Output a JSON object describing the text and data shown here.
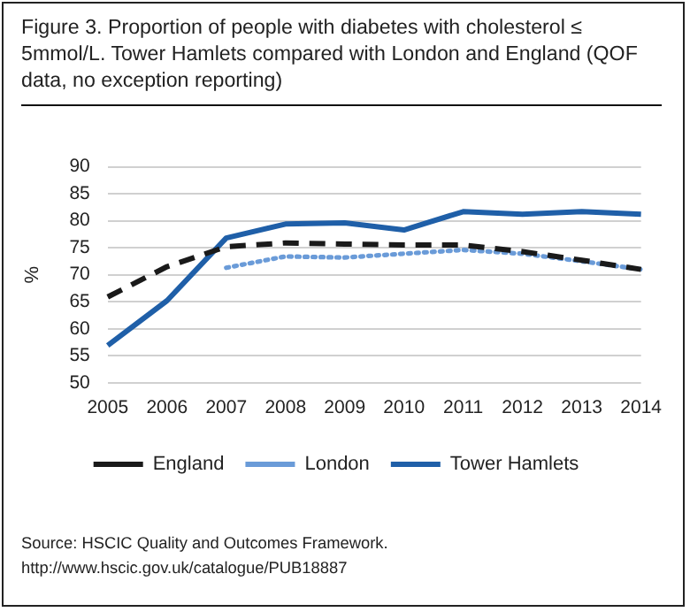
{
  "chart_data": {
    "type": "line",
    "title": "Figure 3. Proportion of people with diabetes with cholesterol ≤ 5mmol/L. Tower Hamlets compared with London and England (QOF data, no exception reporting)",
    "ylabel": "%",
    "categories": [
      "2005",
      "2006",
      "2007",
      "2008",
      "2009",
      "2010",
      "2011",
      "2012",
      "2013",
      "2014"
    ],
    "series": [
      {
        "name": "England",
        "color": "#1a1a1a",
        "line_style": "dashed",
        "values": [
          65.9,
          71.5,
          75.2,
          75.9,
          75.7,
          75.5,
          75.5,
          74.3,
          72.7,
          71.0
        ]
      },
      {
        "name": "London",
        "color": "#6a9bd8",
        "line_style": "dotted",
        "values": [
          null,
          null,
          71.3,
          73.4,
          73.2,
          73.9,
          74.6,
          73.9,
          72.5,
          71.0
        ]
      },
      {
        "name": "Tower Hamlets",
        "color": "#1f5fa8",
        "line_style": "solid",
        "values": [
          56.9,
          65.2,
          76.8,
          79.4,
          79.6,
          78.3,
          81.7,
          81.2,
          81.7,
          81.2
        ]
      }
    ],
    "ylim": [
      50,
      90
    ],
    "yticks": [
      50,
      55,
      60,
      65,
      70,
      75,
      80,
      85,
      90
    ],
    "grid": "y",
    "legend": "bottom",
    "marker": "none",
    "annotations": [
      "Source: HSCIC Quality and Outcomes Framework.",
      "http://www.hscic.gov.uk/catalogue/PUB18887"
    ]
  }
}
